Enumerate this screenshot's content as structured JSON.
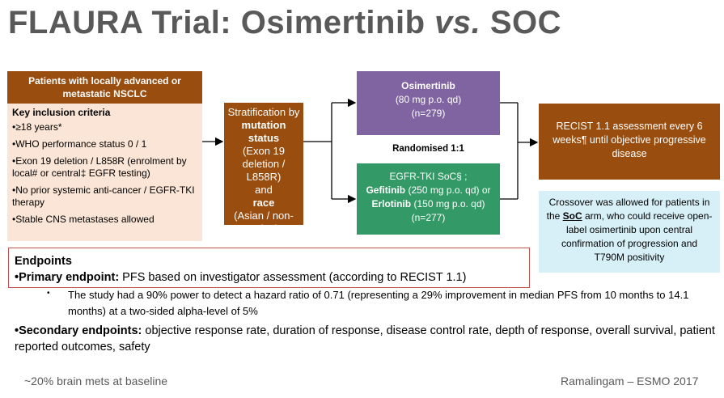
{
  "title": {
    "part1": "FLAURA Trial: Osimertinib ",
    "vs": "vs.",
    "part2": " SOC"
  },
  "patients": {
    "header": "Patients with locally advanced or metastatic NSCLC",
    "criteria_title": "Key inclusion criteria",
    "criteria": [
      "•≥18 years*",
      "•WHO performance status 0 / 1",
      "•Exon 19 deletion / L858R (enrolment by local# or central‡ EGFR testing)",
      "•No prior systemic anti-cancer / EGFR-TKI therapy",
      "•Stable CNS metastases allowed"
    ]
  },
  "stratification": {
    "line1": "Stratification by",
    "mutation_label": "mutation status",
    "mutation_detail": "(Exon 19 deletion / L858R)",
    "and": "and",
    "race_label": "race",
    "race_detail": "(Asian / non-Asian)"
  },
  "osimertinib": {
    "name": "Osimertinib",
    "dose": "(80 mg p.o. qd)",
    "n": "(n=279)"
  },
  "randomised": "Randomised  1:1",
  "egfr_tki": {
    "header": "EGFR-TKI SoC§ ;",
    "gefitinib": "Gefitinib",
    "gefitinib_dose": " (250 mg p.o. qd) or",
    "erlotinib": "Erlotinib",
    "erlotinib_dose": " (150 mg p.o. qd)",
    "n": "(n=277)"
  },
  "recist": "RECIST 1.1 assessment every 6 weeks¶ until objective progressive disease",
  "crossover": {
    "pre": "Crossover was allowed for patients in the ",
    "soc": "SoC",
    "post": " arm, who could receive open-label osimertinib upon central confirmation of progression and T790M positivity"
  },
  "endpoints": {
    "heading": "Endpoints",
    "primary_label": "•Primary endpoint:",
    "primary_text": " PFS based on investigator assessment (according to RECIST 1.1)",
    "sub_bullet": "•",
    "power_text": "The study had a 90% power to detect a hazard ratio of 0.71 (representing a 29% improvement in median PFS from 10 months to 14.1 months) at a two-sided alpha-level of 5%",
    "secondary_label": "•Secondary endpoints:",
    "secondary_text": " objective response rate, duration of response, disease control rate, depth of response, overall survival, patient reported outcomes, safety"
  },
  "footer": {
    "left": "~20% brain mets at baseline",
    "right": "Ramalingam – ESMO 2017"
  }
}
